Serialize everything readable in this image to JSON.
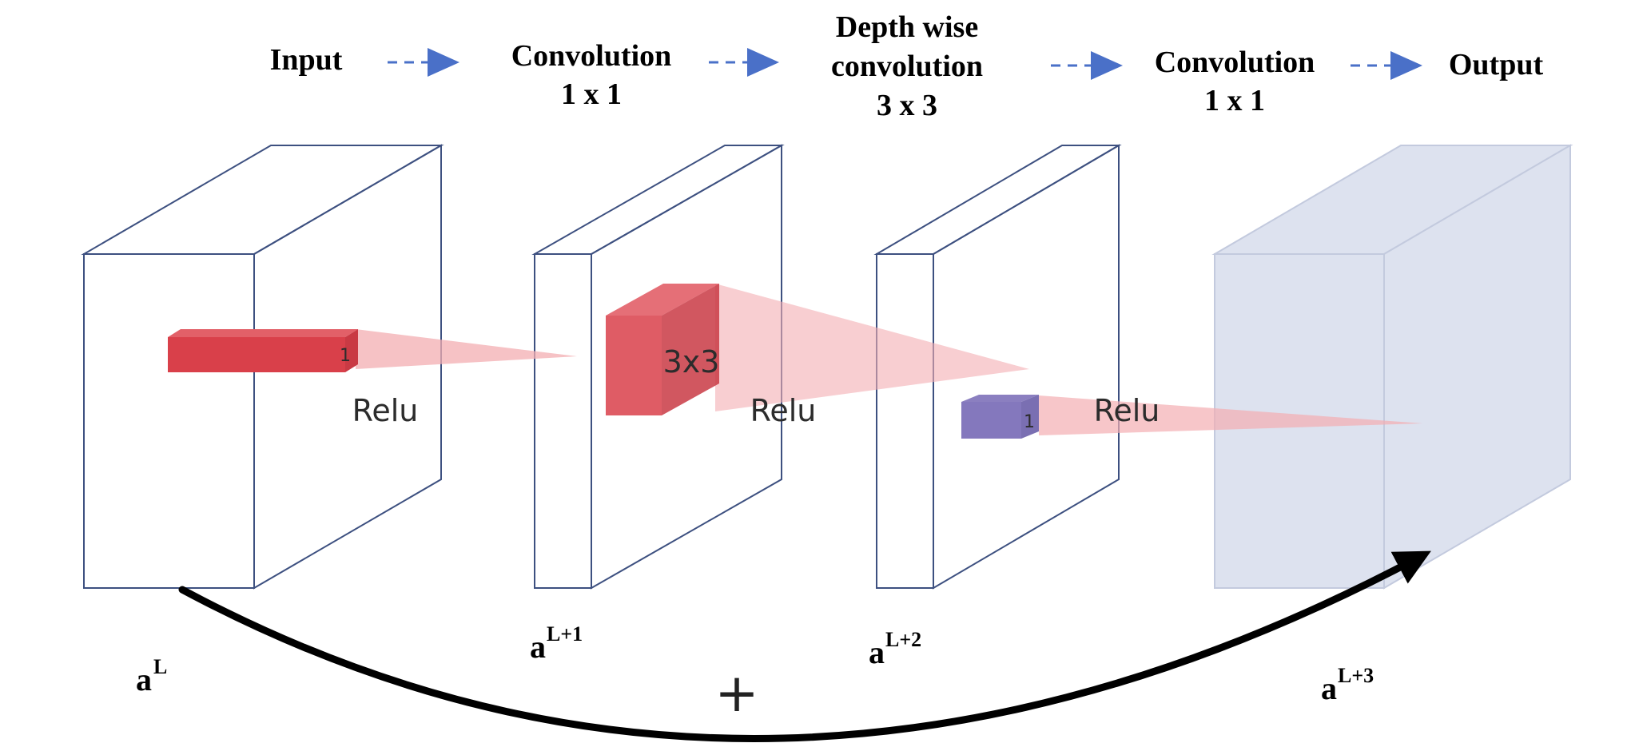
{
  "stages": [
    {
      "lines": [
        "Input"
      ]
    },
    {
      "lines": [
        "Convolution",
        "1 x 1"
      ]
    },
    {
      "lines": [
        "Depth wise",
        "convolution",
        "3 x 3"
      ]
    },
    {
      "lines": [
        "Convolution",
        "1 x 1"
      ]
    },
    {
      "lines": [
        "Output"
      ]
    }
  ],
  "blocks": {
    "input": {
      "relu": "Relu",
      "kernel_size": "1"
    },
    "conv1": {
      "kernel_label": "3x3",
      "relu": "Relu"
    },
    "depthwise": {
      "relu": "Relu",
      "kernel_size": "1"
    }
  },
  "activations": [
    {
      "base": "a",
      "sup": "L"
    },
    {
      "base": "a",
      "sup": "L+1"
    },
    {
      "base": "a",
      "sup": "L+2"
    },
    {
      "base": "a",
      "sup": "L+3"
    }
  ],
  "skip_connection": {
    "symbol": "+"
  },
  "colors": {
    "block_front": "#7289bb",
    "block_side": "#7289bb",
    "block_dark": "#5571ad",
    "block_faded": "#dde2ef",
    "kernel_red": "#d9404a",
    "cone_pink": "#f3aeb2",
    "arrow_blue": "#4a70c8"
  }
}
